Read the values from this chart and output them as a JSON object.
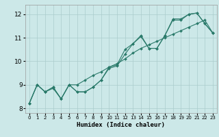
{
  "xlabel": "Humidex (Indice chaleur)",
  "xlim": [
    -0.5,
    23.5
  ],
  "ylim": [
    7.8,
    12.4
  ],
  "yticks": [
    8,
    9,
    10,
    11,
    12
  ],
  "xticks": [
    0,
    1,
    2,
    3,
    4,
    5,
    6,
    7,
    8,
    9,
    10,
    11,
    12,
    13,
    14,
    15,
    16,
    17,
    18,
    19,
    20,
    21,
    22,
    23
  ],
  "background_color": "#cce8e8",
  "grid_color": "#aacccc",
  "line_color": "#2a7a6a",
  "lines": [
    [
      8.2,
      9.0,
      8.7,
      8.9,
      8.4,
      9.0,
      8.7,
      8.7,
      8.9,
      9.2,
      9.7,
      9.8,
      10.3,
      10.75,
      11.05,
      10.55,
      10.55,
      11.1,
      11.8,
      11.8,
      12.0,
      12.05,
      11.6,
      11.2
    ],
    [
      8.2,
      9.0,
      8.7,
      8.9,
      8.4,
      9.0,
      9.0,
      9.2,
      9.4,
      9.55,
      9.75,
      9.9,
      10.1,
      10.35,
      10.55,
      10.7,
      10.85,
      11.0,
      11.15,
      11.3,
      11.45,
      11.6,
      11.75,
      11.2
    ],
    [
      8.2,
      9.0,
      8.7,
      8.85,
      8.4,
      9.0,
      8.7,
      8.7,
      8.9,
      9.2,
      9.75,
      9.85,
      10.5,
      10.75,
      11.1,
      10.55,
      10.55,
      11.1,
      11.75,
      11.75,
      12.0,
      12.05,
      11.6,
      11.2
    ]
  ]
}
